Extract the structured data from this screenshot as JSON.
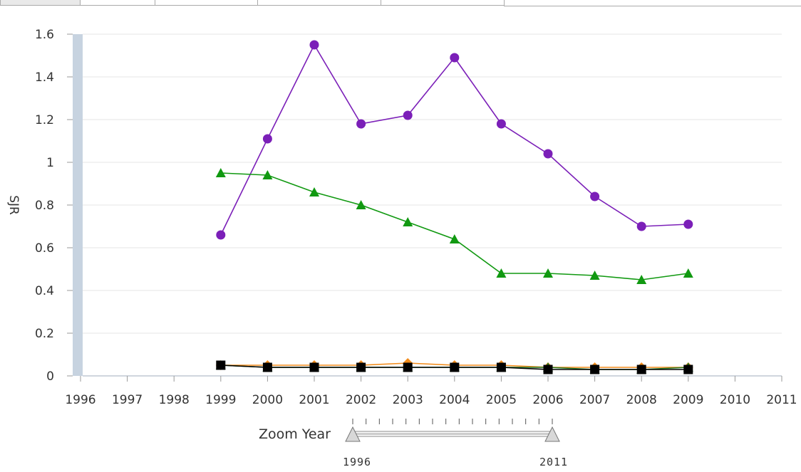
{
  "tabs": [
    {
      "label": ""
    },
    {
      "label": ""
    },
    {
      "label": ""
    },
    {
      "label": ""
    },
    {
      "label": ""
    }
  ],
  "colors": {
    "purple": "#7b1fb8",
    "green": "#119911",
    "orange": "#f28c1c",
    "black": "#000000",
    "darkgreen": "#227722",
    "axis_band": "#c7d3e0"
  },
  "chart_data": {
    "type": "line",
    "title": "",
    "xlabel": "",
    "ylabel": "SJR",
    "x_ticks": [
      "1996",
      "1997",
      "1998",
      "1999",
      "2000",
      "2001",
      "2002",
      "2003",
      "2004",
      "2005",
      "2006",
      "2007",
      "2008",
      "2009",
      "2010",
      "2011"
    ],
    "y_ticks": [
      "0",
      "0.2",
      "0.4",
      "0.6",
      "0.8",
      "1",
      "1.2",
      "1.4",
      "1.6"
    ],
    "xlim": [
      1996,
      2011
    ],
    "ylim": [
      0,
      1.6
    ],
    "grid": true,
    "x": [
      1999,
      2000,
      2001,
      2002,
      2003,
      2004,
      2005,
      2006,
      2007,
      2008,
      2009
    ],
    "series": [
      {
        "marker": "circle",
        "color": "#7b1fb8",
        "values": [
          0.66,
          1.11,
          1.55,
          1.18,
          1.22,
          1.49,
          1.18,
          1.04,
          0.84,
          0.7,
          0.71
        ]
      },
      {
        "marker": "triangle",
        "color": "#119911",
        "values": [
          0.95,
          0.94,
          0.86,
          0.8,
          0.72,
          0.64,
          0.48,
          0.48,
          0.47,
          0.45,
          0.48
        ]
      },
      {
        "marker": "diamond",
        "color": "#f28c1c",
        "values": [
          0.05,
          0.05,
          0.05,
          0.05,
          0.06,
          0.05,
          0.05,
          0.04,
          0.04,
          0.04,
          0.04
        ]
      },
      {
        "marker": "triangle",
        "color": "#227722",
        "values": [
          0.05,
          0.04,
          0.04,
          0.04,
          0.04,
          0.04,
          0.04,
          0.04,
          0.03,
          0.03,
          0.04
        ]
      },
      {
        "marker": "square",
        "color": "#000000",
        "values": [
          0.05,
          0.04,
          0.04,
          0.04,
          0.04,
          0.04,
          0.04,
          0.03,
          0.03,
          0.03,
          0.03
        ]
      }
    ]
  },
  "zoom": {
    "label": "Zoom Year",
    "start": "1996",
    "end": "2011",
    "start_value": 1996,
    "end_value": 2011,
    "min": 1996,
    "max": 2011
  }
}
